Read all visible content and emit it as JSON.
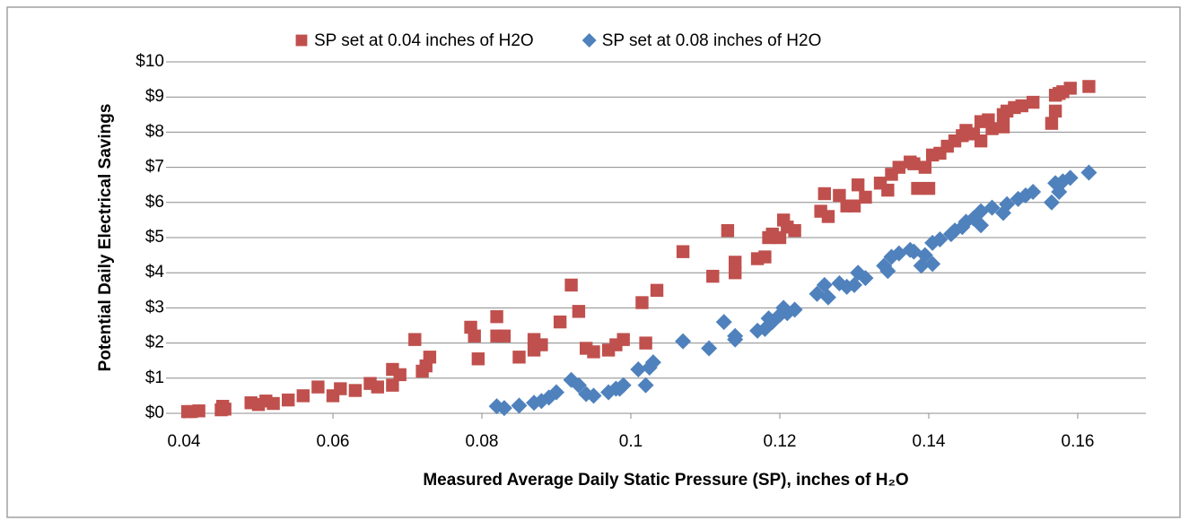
{
  "chart_data": {
    "type": "scatter",
    "x_label": "Measured Average Daily Static Pressure (SP), inches of H₂O",
    "y_label": "Potential Daily Electrical Savings",
    "xlim": [
      0.04,
      0.17
    ],
    "xticks": [
      0.04,
      0.06,
      0.08,
      0.1,
      0.12,
      0.14,
      0.16
    ],
    "ylim": [
      0,
      10
    ],
    "yticks": [
      {
        "value": 0,
        "label": "$0"
      },
      {
        "value": 1,
        "label": "$1"
      },
      {
        "value": 2,
        "label": "$2"
      },
      {
        "value": 3,
        "label": "$3"
      },
      {
        "value": 4,
        "label": "$4"
      },
      {
        "value": 5,
        "label": "$5"
      },
      {
        "value": 6,
        "label": "$6"
      },
      {
        "value": 7,
        "label": "$7"
      },
      {
        "value": 8,
        "label": "$8"
      },
      {
        "value": 9,
        "label": "$9"
      },
      {
        "value": 10,
        "label": "$10"
      }
    ],
    "grid": true,
    "legend": "top",
    "series": [
      {
        "name": "SP set at 0.04 inches of H2O",
        "color": "#c0504d",
        "marker": "square",
        "x": [
          0.0405,
          0.041,
          0.042,
          0.045,
          0.0452,
          0.0455,
          0.049,
          0.05,
          0.051,
          0.052,
          0.054,
          0.056,
          0.058,
          0.06,
          0.061,
          0.063,
          0.065,
          0.066,
          0.068,
          0.068,
          0.069,
          0.071,
          0.072,
          0.0725,
          0.073,
          0.0785,
          0.079,
          0.0795,
          0.082,
          0.082,
          0.083,
          0.085,
          0.087,
          0.087,
          0.088,
          0.0905,
          0.092,
          0.093,
          0.094,
          0.095,
          0.097,
          0.098,
          0.099,
          0.1015,
          0.102,
          0.1035,
          0.107,
          0.111,
          0.113,
          0.114,
          0.114,
          0.117,
          0.118,
          0.1185,
          0.119,
          0.12,
          0.1205,
          0.121,
          0.122,
          0.1255,
          0.126,
          0.1265,
          0.128,
          0.129,
          0.13,
          0.1305,
          0.1315,
          0.1335,
          0.1345,
          0.135,
          0.136,
          0.1375,
          0.138,
          0.1385,
          0.1395,
          0.14,
          0.1405,
          0.1415,
          0.1425,
          0.1435,
          0.1445,
          0.145,
          0.146,
          0.147,
          0.147,
          0.148,
          0.1485,
          0.15,
          0.15,
          0.1505,
          0.1515,
          0.1525,
          0.154,
          0.1565,
          0.157,
          0.157,
          0.1575,
          0.158,
          0.159,
          0.1615
        ],
        "y": [
          0.05,
          0.05,
          0.07,
          0.1,
          0.2,
          0.12,
          0.3,
          0.25,
          0.35,
          0.28,
          0.38,
          0.5,
          0.75,
          0.5,
          0.7,
          0.65,
          0.85,
          0.75,
          1.25,
          0.8,
          1.1,
          2.1,
          1.2,
          1.35,
          1.6,
          2.45,
          2.2,
          1.55,
          2.75,
          2.2,
          2.2,
          1.6,
          2.1,
          1.8,
          1.95,
          2.6,
          3.65,
          2.9,
          1.85,
          1.75,
          1.8,
          1.95,
          2.1,
          3.15,
          2.0,
          3.5,
          4.6,
          3.9,
          5.2,
          4.3,
          4.0,
          4.4,
          4.45,
          5.0,
          5.1,
          5.0,
          5.5,
          5.3,
          5.2,
          5.75,
          6.25,
          5.6,
          6.2,
          5.9,
          5.9,
          6.5,
          6.15,
          6.55,
          6.35,
          6.8,
          7.0,
          7.15,
          7.1,
          6.4,
          7.0,
          6.4,
          7.35,
          7.4,
          7.6,
          7.75,
          7.9,
          8.05,
          7.95,
          8.3,
          7.75,
          8.35,
          8.1,
          8.15,
          8.5,
          8.6,
          8.7,
          8.75,
          8.85,
          8.25,
          9.05,
          8.6,
          9.1,
          9.15,
          9.25,
          9.3
        ]
      },
      {
        "name": "SP set at 0.08 inches of H2O",
        "color": "#4f81bd",
        "marker": "diamond",
        "x": [
          0.082,
          0.083,
          0.085,
          0.087,
          0.088,
          0.089,
          0.09,
          0.092,
          0.093,
          0.094,
          0.095,
          0.097,
          0.098,
          0.0985,
          0.099,
          0.101,
          0.102,
          0.1025,
          0.103,
          0.107,
          0.1105,
          0.1125,
          0.114,
          0.114,
          0.117,
          0.118,
          0.1185,
          0.119,
          0.12,
          0.1205,
          0.121,
          0.122,
          0.125,
          0.126,
          0.1265,
          0.128,
          0.129,
          0.13,
          0.1305,
          0.1315,
          0.134,
          0.1345,
          0.135,
          0.136,
          0.1375,
          0.138,
          0.139,
          0.1395,
          0.1405,
          0.1405,
          0.1415,
          0.143,
          0.1435,
          0.1445,
          0.145,
          0.146,
          0.147,
          0.147,
          0.1485,
          0.15,
          0.1505,
          0.152,
          0.153,
          0.154,
          0.1565,
          0.157,
          0.1575,
          0.158,
          0.159,
          0.1615
        ],
        "y": [
          0.2,
          0.15,
          0.22,
          0.3,
          0.35,
          0.45,
          0.6,
          0.95,
          0.8,
          0.55,
          0.5,
          0.6,
          0.7,
          0.7,
          0.8,
          1.25,
          0.8,
          1.3,
          1.45,
          2.05,
          1.85,
          2.6,
          2.1,
          2.2,
          2.35,
          2.4,
          2.7,
          2.6,
          2.8,
          3.0,
          2.85,
          2.95,
          3.4,
          3.65,
          3.3,
          3.7,
          3.6,
          3.65,
          4.0,
          3.85,
          4.2,
          4.05,
          4.45,
          4.55,
          4.65,
          4.6,
          4.2,
          4.5,
          4.25,
          4.85,
          4.95,
          5.1,
          5.2,
          5.3,
          5.45,
          5.55,
          5.35,
          5.75,
          5.85,
          5.7,
          5.95,
          6.1,
          6.2,
          6.3,
          6.0,
          6.55,
          6.3,
          6.6,
          6.7,
          6.85
        ]
      }
    ]
  }
}
